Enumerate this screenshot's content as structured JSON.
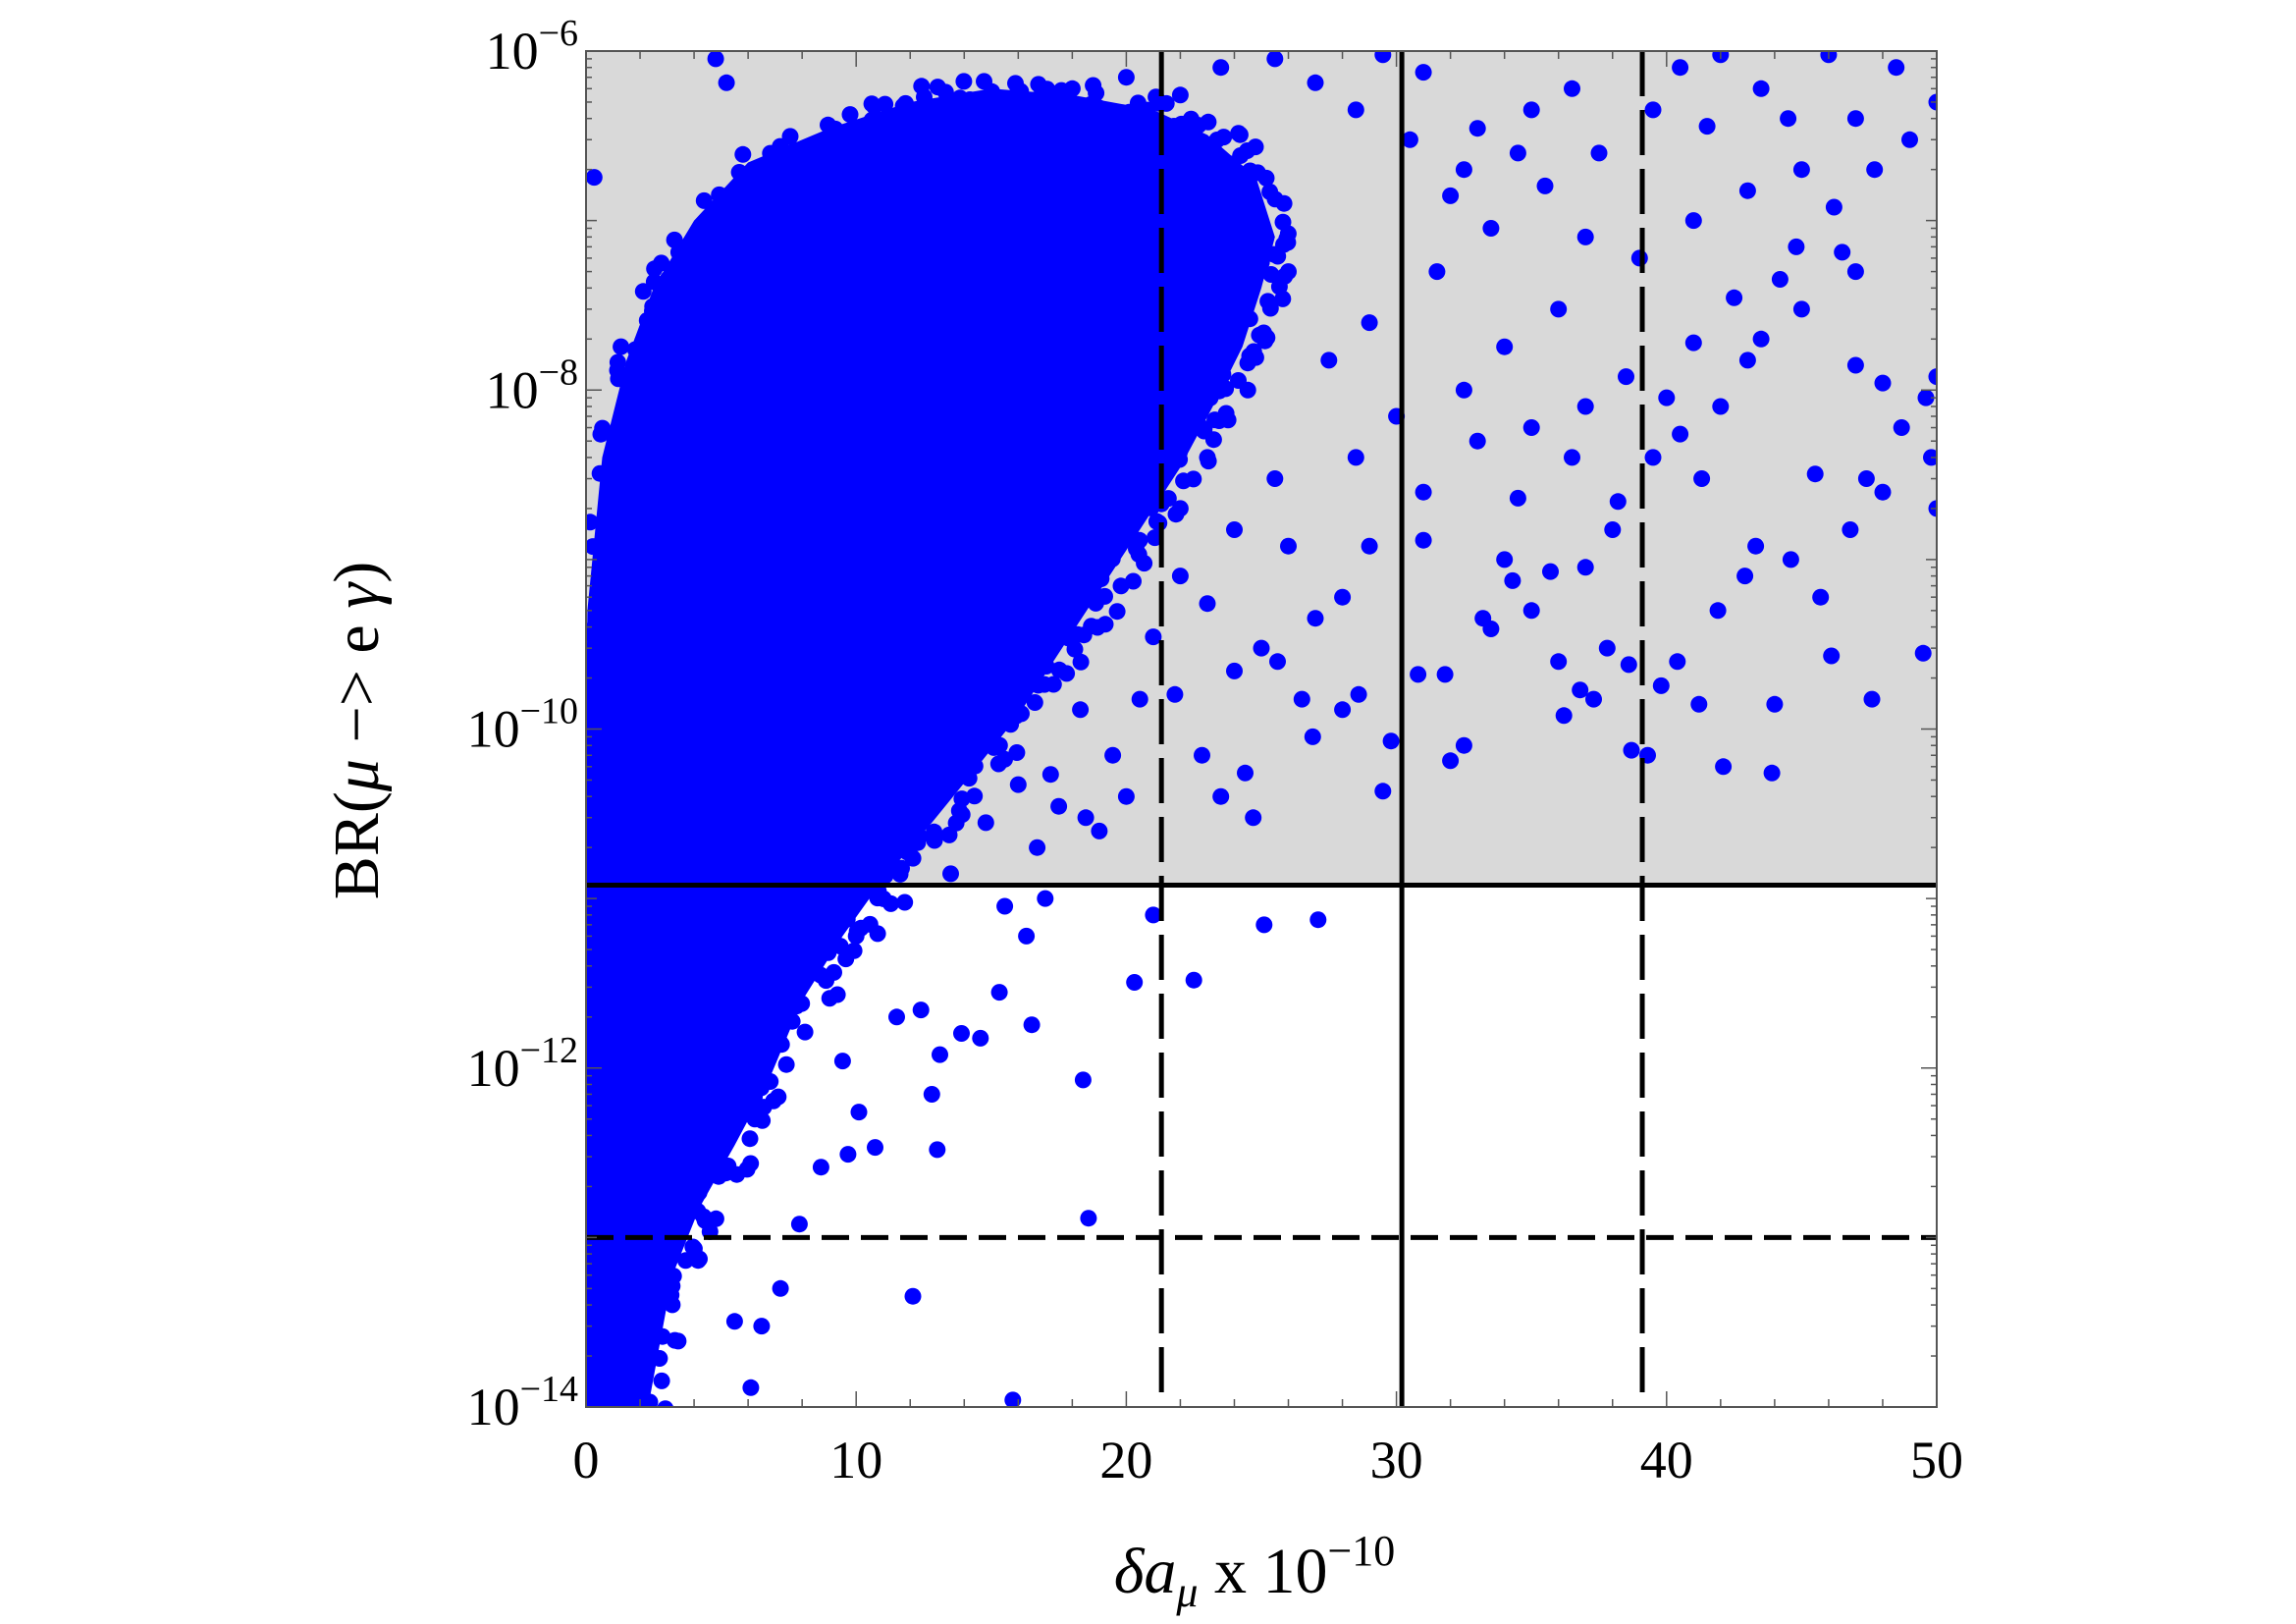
{
  "chart_data": {
    "type": "scatter",
    "title": "",
    "xlabel": {
      "prefix": "δa",
      "sub": "μ",
      "mid": " x 10",
      "sup": "−10"
    },
    "ylabel": {
      "main": "BR(",
      "mu": "μ",
      "rest": " −> e ",
      "gamma": "γ",
      "close": ")"
    },
    "x_scale": "linear",
    "y_scale": "log",
    "xlim": [
      0,
      50
    ],
    "ylim": [
      1e-14,
      1e-06
    ],
    "x_ticks": [
      0,
      10,
      20,
      30,
      40,
      50
    ],
    "x_tick_labels": [
      "0",
      "10",
      "20",
      "30",
      "40",
      "50"
    ],
    "y_ticks": [
      1e-14,
      1e-12,
      1e-10,
      1e-08,
      1e-06
    ],
    "y_tick_labels": [
      {
        "base": "10",
        "exp": "−14"
      },
      {
        "base": "10",
        "exp": "−12"
      },
      {
        "base": "10",
        "exp": "−10"
      },
      {
        "base": "10",
        "exp": "−8"
      },
      {
        "base": "10",
        "exp": "−6"
      }
    ],
    "grid": false,
    "legend": "none",
    "excluded_region": {
      "y_from": 1.2e-11,
      "y_to": 1e-06,
      "color": "#d9d9d9"
    },
    "hlines": [
      {
        "y": 1.2e-11,
        "style": "solid"
      },
      {
        "y": 1e-13,
        "style": "dashed"
      }
    ],
    "vlines": [
      {
        "x": 21.3,
        "style": "dashed"
      },
      {
        "x": 30.2,
        "style": "solid"
      },
      {
        "x": 39.1,
        "style": "dashed"
      }
    ],
    "series": [
      {
        "marker_color": "#0000ff",
        "points": [
          [
            0.3,
            1.8e-07
          ],
          [
            5.2,
            6.5e-07
          ],
          [
            4.8,
            9e-07
          ],
          [
            15.8,
            1.1e-14
          ],
          [
            18.4,
            8.5e-13
          ],
          [
            18.6,
            1.3e-13
          ],
          [
            22.5,
            3.3e-12
          ],
          [
            25.1,
            7e-12
          ],
          [
            27.1,
            7.5e-12
          ],
          [
            29.5,
            4.3e-11
          ],
          [
            32.0,
            6.5e-11
          ],
          [
            32.5,
            8e-11
          ],
          [
            36.2,
            1.2e-10
          ],
          [
            37.3,
            1.5e-10
          ],
          [
            38.7,
            7.5e-11
          ],
          [
            39.3,
            7e-11
          ],
          [
            41.2,
            1.4e-10
          ],
          [
            42.1,
            6e-11
          ],
          [
            43.9,
            5.5e-11
          ],
          [
            44.0,
            1.4e-10
          ],
          [
            46.1,
            2.7e-10
          ],
          [
            47.6,
            1.5e-10
          ],
          [
            49.5,
            2.8e-10
          ],
          [
            45.5,
            3.2e-09
          ],
          [
            48.0,
            1.1e-08
          ],
          [
            48.0,
            2.5e-09
          ],
          [
            50.0,
            2e-09
          ],
          [
            50.0,
            1.2e-08
          ],
          [
            49.6,
            9e-09
          ],
          [
            47.0,
            5e-08
          ],
          [
            47.0,
            1.4e-08
          ],
          [
            46.5,
            6.5e-08
          ],
          [
            45.0,
            3e-08
          ],
          [
            44.2,
            4.5e-08
          ],
          [
            43.5,
            2e-08
          ],
          [
            43.0,
            1.5e-08
          ],
          [
            42.0,
            8e-09
          ],
          [
            41.3,
            3e-09
          ],
          [
            40.5,
            5.5e-09
          ],
          [
            39.5,
            4e-09
          ],
          [
            38.0,
            1.5e-09
          ],
          [
            37.0,
            9e-10
          ],
          [
            36.0,
            2.5e-10
          ],
          [
            35.0,
            5e-10
          ],
          [
            34.0,
            1e-09
          ],
          [
            33.2,
            4.5e-10
          ],
          [
            34.5,
            2.3e-09
          ],
          [
            31.0,
            2.5e-09
          ],
          [
            29.0,
            1.2e-09
          ],
          [
            28.0,
            6e-10
          ],
          [
            27.0,
            4.5e-10
          ],
          [
            26.0,
            1.2e-09
          ],
          [
            25.0,
            3e-10
          ],
          [
            24.0,
            2.2e-10
          ],
          [
            23.0,
            5.5e-10
          ],
          [
            22.0,
            8e-10
          ],
          [
            21.0,
            3.5e-10
          ],
          [
            20.5,
            1.5e-10
          ],
          [
            19.5,
            7e-11
          ],
          [
            23.5,
            4e-11
          ],
          [
            24.7,
            3e-11
          ],
          [
            26.5,
            1.5e-10
          ],
          [
            28.0,
            1.3e-10
          ],
          [
            20.0,
            4e-11
          ],
          [
            19.0,
            2.5e-11
          ],
          [
            17.5,
            3.5e-11
          ],
          [
            21.0,
            8e-12
          ],
          [
            20.3,
            3.2e-12
          ],
          [
            17.0,
            1e-11
          ],
          [
            16.3,
            6e-12
          ],
          [
            15.5,
            9e-12
          ],
          [
            16.5,
            1.8e-12
          ],
          [
            15.3,
            2.8e-12
          ],
          [
            14.6,
            1.5e-12
          ],
          [
            13.9,
            1.6e-12
          ],
          [
            13.1,
            1.2e-12
          ],
          [
            12.4,
            2.2e-12
          ],
          [
            12.8,
            7e-13
          ],
          [
            13.0,
            3.3e-13
          ],
          [
            10.1,
            5.5e-13
          ],
          [
            9.7,
            3.1e-13
          ],
          [
            8.7,
            2.6e-13
          ],
          [
            7.9,
            1.2e-13
          ],
          [
            7.2,
            5e-14
          ],
          [
            6.1,
            1.3e-14
          ],
          [
            5.5,
            3.2e-14
          ],
          [
            6.5,
            3e-14
          ],
          [
            12.1,
            4.5e-14
          ],
          [
            10.7,
            3.4e-13
          ],
          [
            9.5,
            1.1e-12
          ],
          [
            11.5,
            2e-12
          ],
          [
            10.0,
            6e-12
          ],
          [
            11.8,
            9.5e-12
          ],
          [
            13.5,
            1.4e-11
          ],
          [
            12.9,
            2.2e-11
          ],
          [
            14.8,
            2.8e-11
          ],
          [
            16.0,
            4.7e-11
          ],
          [
            18.3,
            1.3e-10
          ],
          [
            17.2,
            5.4e-11
          ],
          [
            16.7,
            2e-11
          ],
          [
            18.5,
            3e-11
          ],
          [
            21.8,
            1.6e-10
          ],
          [
            22.8,
            7e-11
          ],
          [
            24.4,
            5.5e-11
          ],
          [
            25.6,
            2.5e-10
          ],
          [
            26.9,
            9e-11
          ],
          [
            28.6,
            1.6e-10
          ],
          [
            29.8,
            8.5e-11
          ],
          [
            30.8,
            2.1e-10
          ],
          [
            31.8,
            2.1e-10
          ],
          [
            33.5,
            3.9e-10
          ],
          [
            34.3,
            7.5e-10
          ],
          [
            35.7,
            8.5e-10
          ],
          [
            36.8,
            1.7e-10
          ],
          [
            37.8,
            3e-10
          ],
          [
            38.6,
            2.4e-10
          ],
          [
            39.8,
            1.8e-10
          ],
          [
            40.4,
            2.5e-10
          ],
          [
            41.9,
            5e-10
          ],
          [
            42.9,
            8e-10
          ],
          [
            43.3,
            1.2e-09
          ],
          [
            44.6,
            1e-09
          ],
          [
            45.7,
            6e-10
          ],
          [
            46.8,
            1.5e-09
          ],
          [
            47.4,
            3e-09
          ],
          [
            48.7,
            6e-09
          ],
          [
            49.8,
            4e-09
          ],
          [
            38.2,
            2.2e-09
          ],
          [
            40.0,
            9e-09
          ],
          [
            41.0,
            1.9e-08
          ],
          [
            42.5,
            3.5e-08
          ],
          [
            44.8,
            7e-08
          ],
          [
            46.2,
            1.2e-07
          ],
          [
            47.7,
            2e-07
          ],
          [
            49.0,
            3e-07
          ],
          [
            50.0,
            5e-07
          ],
          [
            48.5,
            8e-07
          ],
          [
            46.0,
            9.5e-07
          ],
          [
            43.5,
            6e-07
          ],
          [
            41.5,
            3.6e-07
          ],
          [
            39.5,
            4.5e-07
          ],
          [
            37.5,
            2.5e-07
          ],
          [
            35.5,
            1.6e-07
          ],
          [
            33.5,
            9e-08
          ],
          [
            32.0,
            1.4e-07
          ],
          [
            30.5,
            3e-07
          ],
          [
            28.5,
            4.5e-07
          ],
          [
            27.0,
            6.5e-07
          ],
          [
            25.5,
            9e-07
          ],
          [
            23.5,
            8e-07
          ],
          [
            22.0,
            5.5e-07
          ],
          [
            20.0,
            7e-07
          ],
          [
            18.0,
            6e-07
          ],
          [
            31.5,
            5e-08
          ],
          [
            29.0,
            2.5e-08
          ],
          [
            27.5,
            1.5e-08
          ],
          [
            26.0,
            5e-08
          ],
          [
            24.5,
            1e-08
          ],
          [
            23.0,
            4e-09
          ],
          [
            22.0,
            2e-09
          ],
          [
            24.0,
            1.5e-09
          ],
          [
            25.5,
            3e-09
          ],
          [
            28.5,
            4e-09
          ],
          [
            30.0,
            7e-09
          ],
          [
            32.5,
            1e-08
          ],
          [
            34.0,
            1.8e-08
          ],
          [
            36.0,
            3e-08
          ],
          [
            35.0,
            6e-09
          ],
          [
            37.0,
            8e-09
          ],
          [
            38.5,
            1.2e-08
          ],
          [
            36.5,
            4e-09
          ],
          [
            33.0,
            5e-09
          ],
          [
            31.0,
            1.3e-09
          ],
          [
            45.0,
            2e-07
          ],
          [
            47.0,
            4e-07
          ],
          [
            43.0,
            1.5e-07
          ],
          [
            41.0,
            1e-07
          ],
          [
            39.0,
            6e-08
          ],
          [
            37.0,
            8e-08
          ],
          [
            35.0,
            4.5e-07
          ],
          [
            33.0,
            3.5e-07
          ],
          [
            31.0,
            7.5e-07
          ],
          [
            29.5,
            9.5e-07
          ],
          [
            40.5,
            8e-07
          ],
          [
            42.0,
            9.5e-07
          ],
          [
            44.5,
            4e-07
          ],
          [
            36.5,
            6e-07
          ],
          [
            34.5,
            2.5e-07
          ],
          [
            32.5,
            2e-07
          ]
        ]
      }
    ]
  }
}
